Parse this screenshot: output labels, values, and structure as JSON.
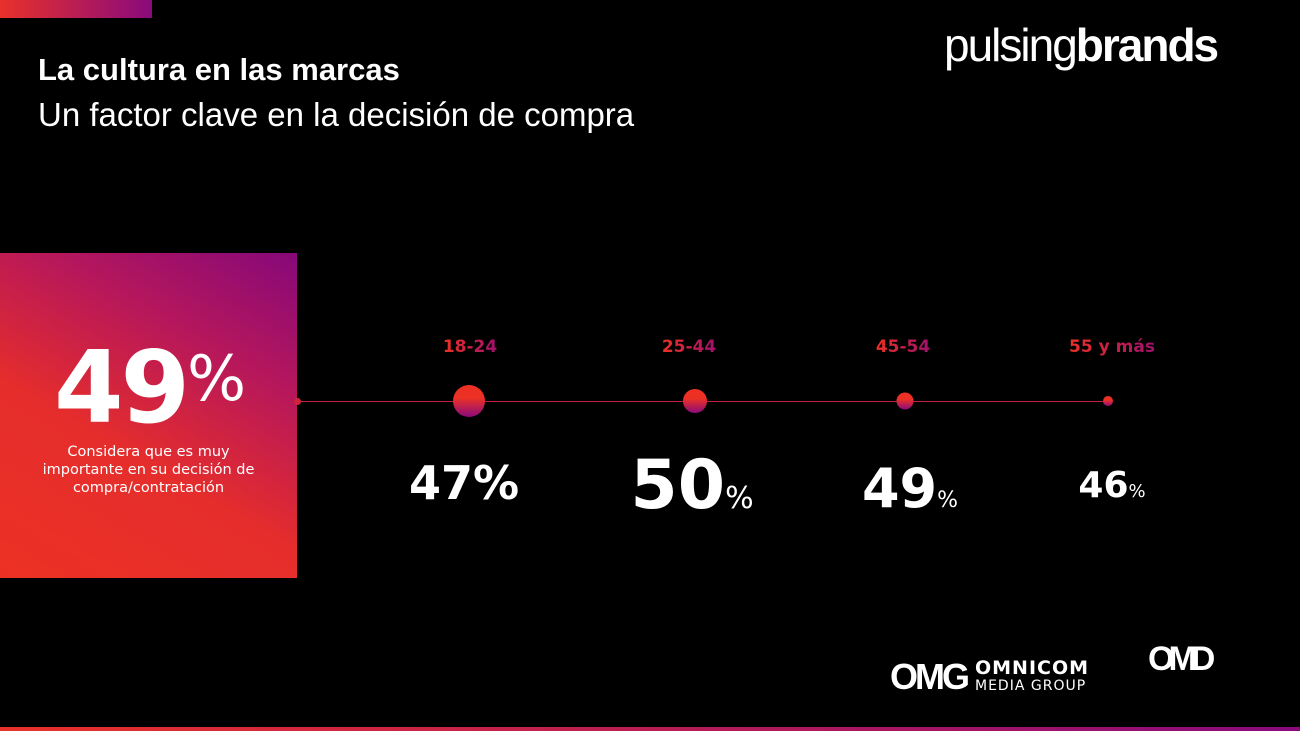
{
  "header": {
    "title": "La cultura en las marcas",
    "subtitle": "Un factor clave en la decisión de compra"
  },
  "brand": {
    "light": "pulsing",
    "bold": "brands"
  },
  "hero": {
    "value": "49",
    "unit": "%",
    "description": "Considera que es muy importante en su decisión de compra/contratación"
  },
  "age_groups": [
    {
      "label": "18-24",
      "value": "47",
      "unit": "%"
    },
    {
      "label": "25-44",
      "value": "50",
      "unit": "%"
    },
    {
      "label": "45-54",
      "value": "49",
      "unit": "%"
    },
    {
      "label": "55 y más",
      "value": "46",
      "unit": "%"
    }
  ],
  "footer": {
    "omg_mark": "OMG",
    "omg_line1": "OMNICOM",
    "omg_line2": "MEDIA GROUP",
    "omd": "OMD"
  },
  "colors": {
    "accent_red": "#ec3124",
    "accent_purple": "#8a0a7c"
  }
}
